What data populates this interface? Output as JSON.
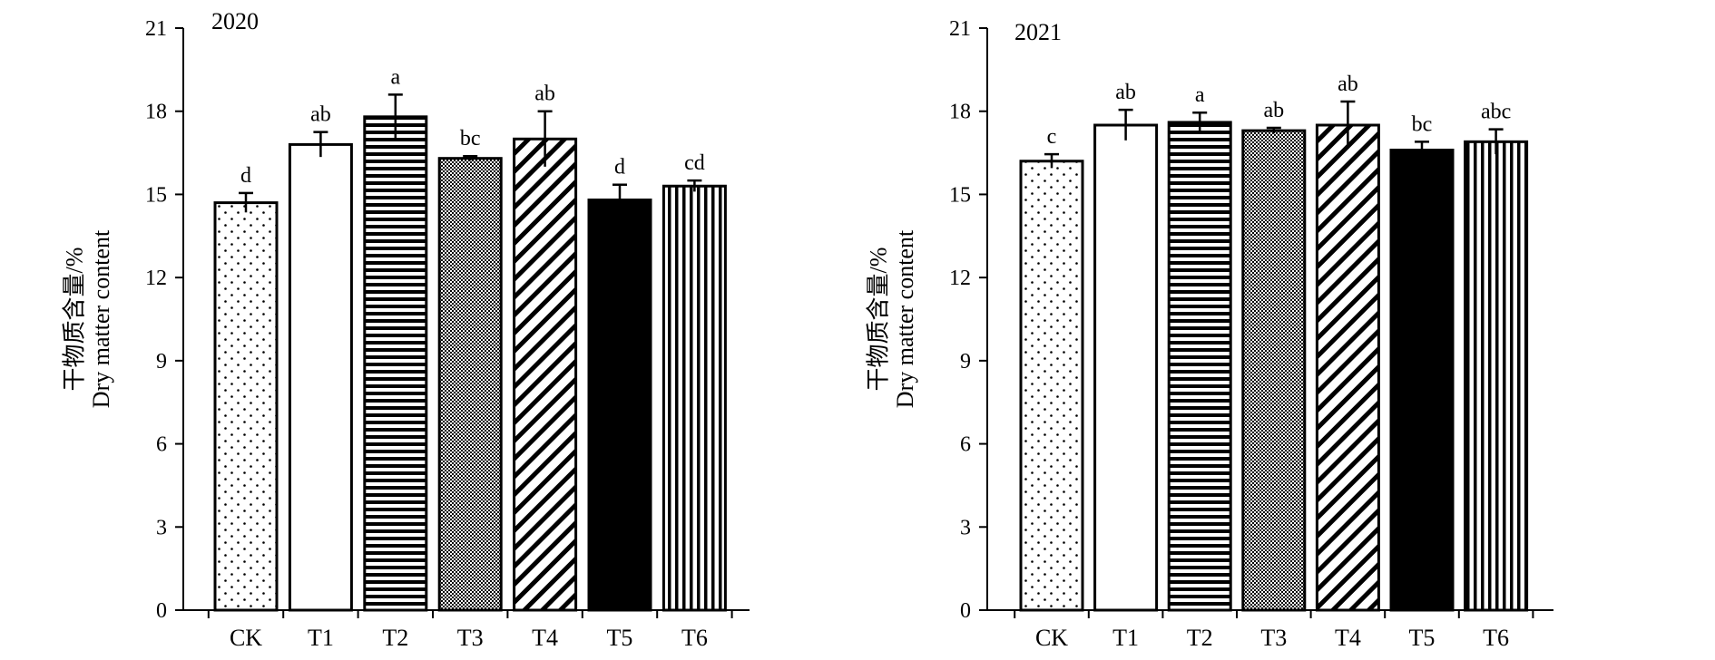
{
  "chart_data": [
    {
      "type": "bar",
      "title": "2020",
      "ylabel_cn": "干物质含量/%",
      "ylabel_en": "Dry matter content",
      "xlabel": "",
      "ylim": [
        0,
        21
      ],
      "yticks": [
        "0",
        "3",
        "6",
        "9",
        "12",
        "15",
        "18",
        "21"
      ],
      "categories": [
        "CK",
        "T1",
        "T2",
        "T3",
        "T4",
        "T5",
        "T6"
      ],
      "values": [
        14.7,
        16.8,
        17.8,
        16.3,
        17.0,
        14.8,
        15.3
      ],
      "errors": [
        0.35,
        0.45,
        0.8,
        0.08,
        1.0,
        0.55,
        0.2
      ],
      "significance": [
        "d",
        "ab",
        "a",
        "bc",
        "ab",
        "d",
        "cd"
      ],
      "patterns": [
        "dots",
        "white",
        "horizontal",
        "crosshatch",
        "diagonal",
        "black",
        "vertical"
      ],
      "grid": false,
      "legend": "none"
    },
    {
      "type": "bar",
      "title": "2021",
      "ylabel_cn": "干物质含量/%",
      "ylabel_en": "Dry matter content",
      "xlabel": "",
      "ylim": [
        0,
        21
      ],
      "yticks": [
        "0",
        "3",
        "6",
        "9",
        "12",
        "15",
        "18",
        "21"
      ],
      "categories": [
        "CK",
        "T1",
        "T2",
        "T3",
        "T4",
        "T5",
        "T6"
      ],
      "values": [
        16.2,
        17.5,
        17.6,
        17.3,
        17.5,
        16.6,
        16.9
      ],
      "errors": [
        0.25,
        0.55,
        0.35,
        0.1,
        0.85,
        0.3,
        0.45
      ],
      "significance": [
        "c",
        "ab",
        "a",
        "ab",
        "ab",
        "bc",
        "abc"
      ],
      "patterns": [
        "dots",
        "white",
        "horizontal",
        "crosshatch",
        "diagonal",
        "black",
        "vertical"
      ],
      "grid": false,
      "legend": "none"
    }
  ]
}
